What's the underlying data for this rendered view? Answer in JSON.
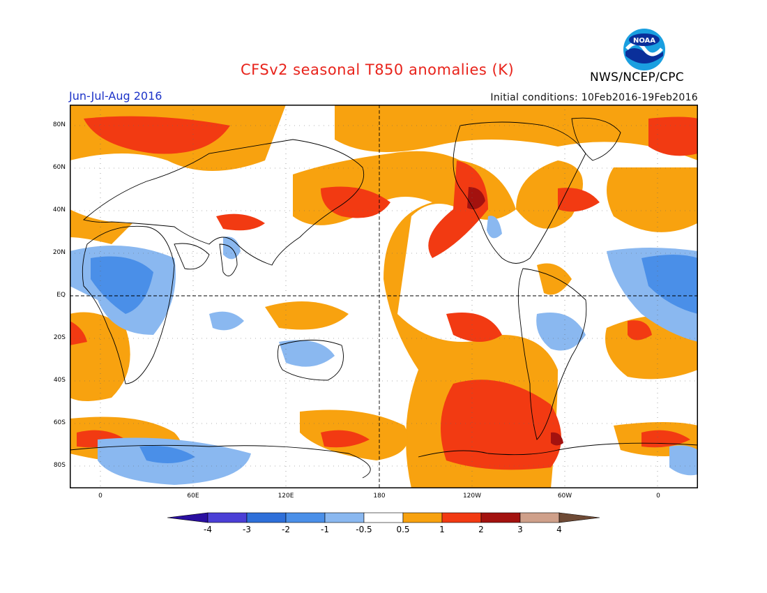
{
  "title": "CFSv2 seasonal T850 anomalies (K)",
  "period": "Jun-Jul-Aug 2016",
  "initial_conditions": "Initial conditions: 10Feb2016-19Feb2016",
  "agency": "NWS/NCEP/CPC",
  "logo": {
    "icon": "noaa-logo-icon",
    "text": "NOAA"
  },
  "map": {
    "lat_labels": [
      "80N",
      "60N",
      "40N",
      "20N",
      "EQ",
      "20S",
      "40S",
      "60S",
      "80S"
    ],
    "lon_labels": [
      "0",
      "60E",
      "120E",
      "180",
      "120W",
      "60W",
      "0"
    ],
    "reference_lines": [
      "Equator",
      "180"
    ]
  },
  "legend": {
    "labels": [
      "-4",
      "-3",
      "-2",
      "-1",
      "-0.5",
      "0.5",
      "1",
      "2",
      "3",
      "4"
    ],
    "colors": [
      "#2a0fa0",
      "#4b3fd6",
      "#2e6fd9",
      "#4a8fe8",
      "#8ab8f0",
      "#ffffff",
      "#f8a20f",
      "#f23a12",
      "#a3120f",
      "#cfa08a",
      "#6e4a35"
    ],
    "units": "K"
  }
}
